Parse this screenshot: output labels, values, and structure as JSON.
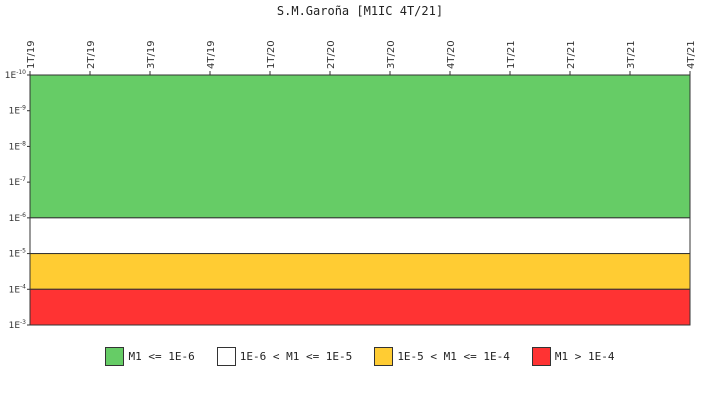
{
  "chart_data": {
    "type": "area",
    "title": "S.M.Garoña [M1IC 4T/21]",
    "x_ticks": [
      "1T/19",
      "2T/19",
      "3T/19",
      "4T/19",
      "1T/20",
      "2T/20",
      "3T/20",
      "4T/20",
      "1T/21",
      "2T/21",
      "3T/21",
      "4T/21"
    ],
    "y_scale": "log",
    "y_inverted": true,
    "ylim": [
      1e-10,
      0.001
    ],
    "y_ticks": [
      {
        "value": 1e-10,
        "base": "1E",
        "exp": "-10"
      },
      {
        "value": 1e-09,
        "base": "1E",
        "exp": "-9"
      },
      {
        "value": 1e-08,
        "base": "1E",
        "exp": "-8"
      },
      {
        "value": 1e-07,
        "base": "1E",
        "exp": "-7"
      },
      {
        "value": 1e-06,
        "base": "1E",
        "exp": "-6"
      },
      {
        "value": 1e-05,
        "base": "1E",
        "exp": "-5"
      },
      {
        "value": 0.0001,
        "base": "1E",
        "exp": "-4"
      },
      {
        "value": 0.001,
        "base": "1E",
        "exp": "-3"
      }
    ],
    "bands": [
      {
        "from": 1e-10,
        "to": 1e-06,
        "color": "#66cc66",
        "label": "M1 <= 1E-6"
      },
      {
        "from": 1e-06,
        "to": 1e-05,
        "color": "#ffffff",
        "label": "1E-6 < M1 <= 1E-5"
      },
      {
        "from": 1e-05,
        "to": 0.0001,
        "color": "#ffcc33",
        "label": "1E-5 < M1 <= 1E-4"
      },
      {
        "from": 0.0001,
        "to": 0.001,
        "color": "#ff3333",
        "label": "M1 > 1E-4"
      }
    ],
    "legend_position": "bottom",
    "grid": false
  }
}
